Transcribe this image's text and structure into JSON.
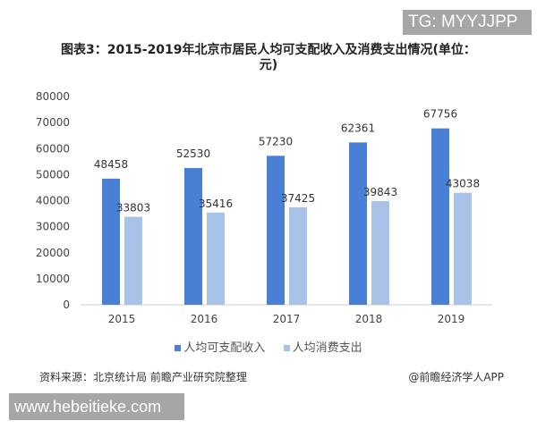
{
  "watermarks": {
    "tg": "TG: MYYJJPP",
    "url": "www.hebeitieke.com"
  },
  "source": "资料来源：北京统计局 前瞻产业研究院整理",
  "credit": "@前瞻经济学人APP",
  "chart_data": {
    "type": "bar",
    "title": "图表3：2015-2019年北京市居民人均可支配收入及消费支出情况(单位：元)",
    "categories": [
      "2015",
      "2016",
      "2017",
      "2018",
      "2019"
    ],
    "series": [
      {
        "name": "人均可支配收入",
        "values": [
          48458,
          52530,
          57230,
          62361,
          67756
        ],
        "color": "#4a7fd6"
      },
      {
        "name": "人均消费支出",
        "values": [
          33803,
          35416,
          37425,
          39843,
          43038
        ],
        "color": "#a9c3e8"
      }
    ],
    "yticks": [
      0,
      10000,
      20000,
      30000,
      40000,
      50000,
      60000,
      70000,
      80000
    ],
    "ylim": [
      0,
      80000
    ],
    "grid": false,
    "legend": "bottom"
  }
}
